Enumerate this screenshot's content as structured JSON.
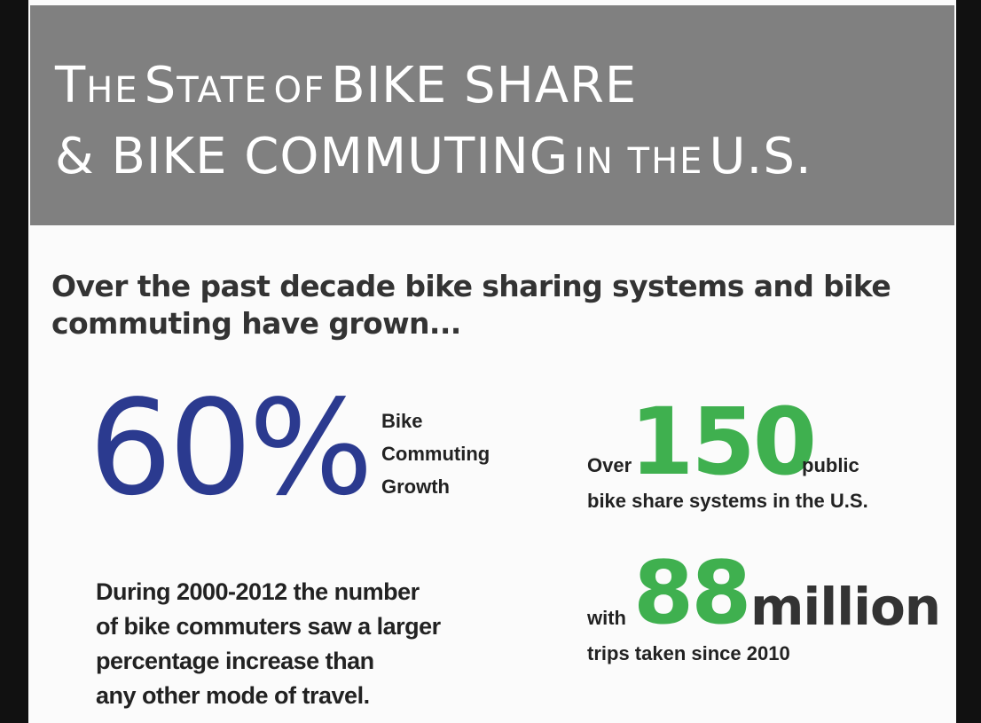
{
  "header": {
    "line1": {
      "the": "The",
      "state": "State",
      "of": "of",
      "bike_share": "BIKE SHARE"
    },
    "line2": {
      "commuting": "& BIKE COMMUTING",
      "in_the": "in the",
      "us": "U.S."
    }
  },
  "intro": "Over the past decade bike sharing systems and bike commuting have grown...",
  "growth": {
    "value": "60%",
    "label_lines": [
      "Bike",
      "Commuting",
      "Growth"
    ],
    "description_lines": [
      "During 2000-2012 the number",
      "of bike commuters saw a larger",
      "percentage increase than",
      "any other mode of travel."
    ]
  },
  "systems": {
    "prefix": "Over",
    "value": "150",
    "suffix": "public",
    "caption": "bike share systems in the U.S."
  },
  "trips": {
    "prefix": "with",
    "value": "88",
    "unit": "million",
    "caption": "trips taken since 2010"
  },
  "colors": {
    "header_bg": "#808080",
    "growth_blue": "#2b3a8f",
    "stat_green": "#3fb04f",
    "frame": "#111111"
  }
}
